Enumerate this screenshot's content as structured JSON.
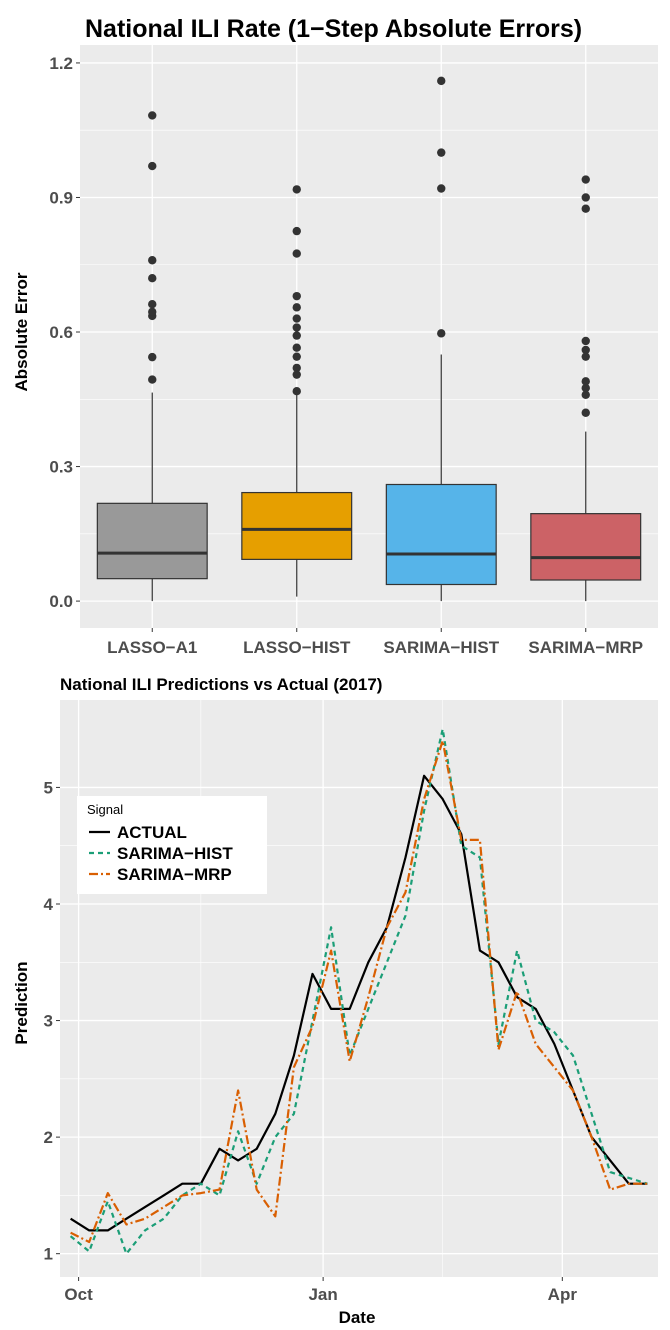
{
  "chart_data": [
    {
      "type": "box",
      "title": "National ILI Rate (1−Step Absolute Errors)",
      "xlabel": "",
      "ylabel": "Absolute Error",
      "ylim": [
        -0.06,
        1.24
      ],
      "yticks": [
        0.0,
        0.3,
        0.6,
        0.9,
        1.2
      ],
      "ytick_labels": [
        "0.0",
        "0.3",
        "0.6",
        "0.9",
        "1.2"
      ],
      "grid": true,
      "boxes": [
        {
          "category": "LASSO−A1",
          "color": "#999999",
          "min": 0.0,
          "q1": 0.05,
          "median": 0.107,
          "q3": 0.218,
          "max": 0.465,
          "outliers": [
            0.494,
            0.544,
            0.636,
            0.645,
            0.662,
            0.72,
            0.76,
            0.97,
            1.083
          ]
        },
        {
          "category": "LASSO−HIST",
          "color": "#E69F00",
          "min": 0.01,
          "q1": 0.093,
          "median": 0.16,
          "q3": 0.242,
          "max": 0.46,
          "outliers": [
            0.468,
            0.505,
            0.52,
            0.545,
            0.565,
            0.592,
            0.61,
            0.63,
            0.655,
            0.68,
            0.775,
            0.825,
            0.918
          ]
        },
        {
          "category": "SARIMA−HIST",
          "color": "#56B4E9",
          "min": 0.0,
          "q1": 0.037,
          "median": 0.105,
          "q3": 0.26,
          "max": 0.55,
          "outliers": [
            0.597,
            0.92,
            1.0,
            1.16
          ]
        },
        {
          "category": "SARIMA−MRP",
          "color": "#CC6266",
          "min": 0.0,
          "q1": 0.047,
          "median": 0.097,
          "q3": 0.195,
          "max": 0.378,
          "outliers": [
            0.42,
            0.46,
            0.475,
            0.49,
            0.545,
            0.56,
            0.58,
            0.875,
            0.9,
            0.94
          ]
        }
      ]
    },
    {
      "type": "line",
      "title": "National ILI Predictions vs Actual (2017)",
      "xlabel": "Date",
      "ylabel": "Prediction",
      "xlim": [
        "2016-09-24",
        "2017-05-07"
      ],
      "ylim": [
        0.8,
        5.75
      ],
      "yticks": [
        1,
        2,
        3,
        4,
        5
      ],
      "ytick_labels": [
        "1",
        "2",
        "3",
        "4",
        "5"
      ],
      "xticks": [
        "2016-10-01",
        "2017-01-01",
        "2017-04-01"
      ],
      "xtick_labels": [
        "Oct",
        "Jan",
        "Apr"
      ],
      "grid": true,
      "legend": {
        "title": "Signal",
        "position": "top-left"
      },
      "series": [
        {
          "name": "ACTUAL",
          "color": "#000000",
          "dash": "",
          "width": 2.2,
          "x": [
            "2016-09-28",
            "2016-10-05",
            "2016-10-12",
            "2016-10-19",
            "2016-10-26",
            "2016-11-02",
            "2016-11-09",
            "2016-11-16",
            "2016-11-23",
            "2016-11-30",
            "2016-12-07",
            "2016-12-14",
            "2016-12-21",
            "2016-12-28",
            "2017-01-04",
            "2017-01-11",
            "2017-01-18",
            "2017-01-25",
            "2017-02-01",
            "2017-02-08",
            "2017-02-15",
            "2017-02-22",
            "2017-03-01",
            "2017-03-08",
            "2017-03-15",
            "2017-03-22",
            "2017-03-29",
            "2017-04-05",
            "2017-04-12",
            "2017-04-19",
            "2017-04-26",
            "2017-05-03"
          ],
          "y": [
            1.3,
            1.2,
            1.2,
            1.3,
            1.4,
            1.5,
            1.6,
            1.6,
            1.9,
            1.8,
            1.9,
            2.2,
            2.7,
            3.4,
            3.1,
            3.1,
            3.5,
            3.8,
            4.4,
            5.1,
            4.9,
            4.6,
            3.6,
            3.5,
            3.2,
            3.1,
            2.8,
            2.4,
            2.0,
            1.8,
            1.6,
            1.6
          ]
        },
        {
          "name": "SARIMA−HIST",
          "color": "#1B9E77",
          "dash": "5,4",
          "width": 2.2,
          "x": [
            "2016-09-28",
            "2016-10-05",
            "2016-10-12",
            "2016-10-19",
            "2016-10-26",
            "2016-11-02",
            "2016-11-09",
            "2016-11-16",
            "2016-11-23",
            "2016-11-30",
            "2016-12-07",
            "2016-12-14",
            "2016-12-21",
            "2016-12-28",
            "2017-01-04",
            "2017-01-11",
            "2017-01-18",
            "2017-01-25",
            "2017-02-01",
            "2017-02-08",
            "2017-02-15",
            "2017-02-22",
            "2017-03-01",
            "2017-03-08",
            "2017-03-15",
            "2017-03-22",
            "2017-03-29",
            "2017-04-05",
            "2017-04-12",
            "2017-04-19",
            "2017-04-26",
            "2017-05-03"
          ],
          "y": [
            1.15,
            1.02,
            1.45,
            1.0,
            1.2,
            1.3,
            1.5,
            1.6,
            1.5,
            2.05,
            1.6,
            2.0,
            2.2,
            3.0,
            3.8,
            2.7,
            3.1,
            3.5,
            3.9,
            4.8,
            5.5,
            4.5,
            4.4,
            2.8,
            3.6,
            3.0,
            2.9,
            2.7,
            2.2,
            1.7,
            1.65,
            1.6
          ]
        },
        {
          "name": "SARIMA−MRP",
          "color": "#D95F02",
          "dash": "9,3,2,3",
          "width": 2.2,
          "x": [
            "2016-09-28",
            "2016-10-05",
            "2016-10-12",
            "2016-10-19",
            "2016-10-26",
            "2016-11-02",
            "2016-11-09",
            "2016-11-16",
            "2016-11-23",
            "2016-11-30",
            "2016-12-07",
            "2016-12-14",
            "2016-12-21",
            "2016-12-28",
            "2017-01-04",
            "2017-01-11",
            "2017-01-18",
            "2017-01-25",
            "2017-02-01",
            "2017-02-08",
            "2017-02-15",
            "2017-02-22",
            "2017-03-01",
            "2017-03-08",
            "2017-03-15",
            "2017-03-22",
            "2017-03-29",
            "2017-04-05",
            "2017-04-12",
            "2017-04-19",
            "2017-04-26",
            "2017-05-03"
          ],
          "y": [
            1.18,
            1.1,
            1.52,
            1.25,
            1.3,
            1.4,
            1.5,
            1.52,
            1.55,
            2.4,
            1.55,
            1.32,
            2.6,
            2.95,
            3.6,
            2.65,
            3.2,
            3.8,
            4.1,
            4.9,
            5.4,
            4.55,
            4.55,
            2.75,
            3.25,
            2.8,
            2.6,
            2.4,
            2.0,
            1.55,
            1.6,
            1.6
          ]
        }
      ]
    }
  ]
}
